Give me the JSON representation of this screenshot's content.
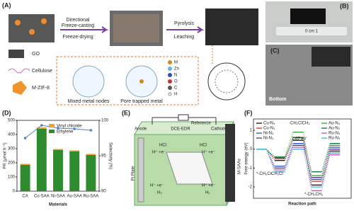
{
  "panels": {
    "A": {
      "label": "(A)",
      "arrow1": [
        "Directional",
        "Freeze-casting",
        "Freeze-drying"
      ],
      "arrow2": [
        "Pyrolysis",
        "Leaching"
      ],
      "materials": [
        "GO",
        "Cellulose",
        "M-ZIF-8"
      ],
      "insets": [
        "Mixed metal nodes",
        "Pore trapped metal"
      ],
      "atoms": [
        "M",
        "Zn",
        "N",
        "O",
        "C",
        "H"
      ]
    },
    "B": {
      "label": "(B)",
      "ruler": "0 cm 1"
    },
    "C": {
      "label": "(C)",
      "caption": "Bottom"
    },
    "D": {
      "label": "(D)"
    },
    "E": {
      "label": "(E)",
      "anode": "Anode",
      "reference": "Reference",
      "cell": "DCE-EDR",
      "cathode": "Cathode",
      "plate": "Pt Plate",
      "electrode": "M-SAAs",
      "hcl": [
        "HCl",
        "HCl"
      ],
      "proton": [
        "H⁺ +e⁻",
        "H⁺ +e⁻",
        "H⁺ +e⁻",
        "H⁺ +e⁻"
      ],
      "h2": [
        "H₂",
        "H₂"
      ]
    },
    "F": {
      "label": "(F)"
    }
  },
  "chart_data": [
    {
      "type": "bar",
      "stacked": true,
      "xlabel": "Materials",
      "ylabel": "PR (μmol h⁻¹)",
      "y2label": "Selectivity (%)",
      "categories": [
        "CA",
        "Cu-SAA",
        "Ni-SAA",
        "Au-SAA",
        "Ru-SAA"
      ],
      "series": [
        {
          "name": "Ethylene",
          "color": "#2e8b2e",
          "values": [
            185,
            440,
            290,
            280,
            255
          ]
        },
        {
          "name": "Vinyl chloride",
          "color": "#f0a030",
          "values": [
            8,
            10,
            8,
            8,
            8
          ]
        },
        {
          "color": "#4a7fd0",
          "axis": "y2",
          "values": [
            97.5,
            99.3,
            98.9,
            98.8,
            98.6
          ]
        }
      ],
      "ylim": [
        0,
        500
      ],
      "yticks": [
        0,
        100,
        200,
        300,
        400,
        500
      ],
      "y2lim": [
        90,
        100
      ],
      "y2ticks": [
        90,
        95,
        100
      ]
    },
    {
      "type": "line",
      "xlabel": "Reaction path",
      "ylabel": "Free energy (eV)",
      "ylim": [
        -2.6,
        1.6
      ],
      "yticks": [
        -2,
        -1,
        0,
        1
      ],
      "annotations": [
        "*-CH₂ClCH₂Cl",
        "·CH₂ClCH₂",
        "*-CH₂CH₂",
        "1.07 eV"
      ],
      "series": [
        {
          "name": "Cu-N₄",
          "color": "#111111",
          "values": [
            0,
            -0.6,
            0.47,
            -1.9,
            -0.1
          ]
        },
        {
          "name": "Cu-N₃",
          "color": "#d62728",
          "values": [
            0,
            -0.5,
            0.6,
            -1.7,
            -0.2
          ]
        },
        {
          "name": "Ni-N₄",
          "color": "#1f4fd0",
          "values": [
            0,
            -0.9,
            0.3,
            -1.6,
            0.1
          ]
        },
        {
          "name": "Ni-N₃",
          "color": "#5a2a7a",
          "values": [
            0,
            -1.0,
            0.2,
            -1.5,
            0
          ]
        },
        {
          "name": "Au-N₄",
          "color": "#2ca02c",
          "values": [
            0,
            -0.4,
            0.9,
            -1.4,
            0.2
          ]
        },
        {
          "name": "Au-N₃",
          "color": "#0b6b3a",
          "values": [
            0,
            -0.45,
            0.62,
            -1.2,
            0.3
          ]
        },
        {
          "name": "Ru-N₄",
          "color": "#c050c0",
          "values": [
            0,
            -1.1,
            0.1,
            -2.2,
            -0.3
          ]
        },
        {
          "name": "Ru-N₃",
          "color": "#3ab0e0",
          "values": [
            0,
            -1.2,
            0,
            -2.0,
            -0.2
          ]
        }
      ]
    }
  ]
}
